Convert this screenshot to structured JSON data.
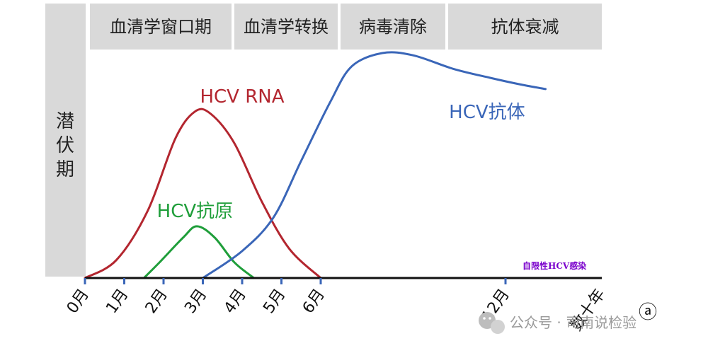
{
  "chart_data": {
    "type": "line",
    "title": "",
    "xlabel": "",
    "ylabel": "",
    "x_ticks": [
      "0月",
      "1月",
      "2月",
      "3月",
      "4月",
      "5月",
      "6月",
      "12月",
      "数十年"
    ],
    "x_domain_months": [
      0,
      13.8
    ],
    "y_range": [
      0,
      100
    ],
    "grid": false,
    "legend": "none",
    "latent_period_label": "潜伏期",
    "phases": [
      {
        "label": "血清学窗口期",
        "start": 0,
        "end": 4
      },
      {
        "label": "血清学转换",
        "start": 4,
        "end": 6.5
      },
      {
        "label": "病毒清除",
        "start": 6.5,
        "end": 9.3
      },
      {
        "label": "抗体衰减",
        "start": 9.3,
        "end": 13.3
      }
    ],
    "series": [
      {
        "name": "HCV RNA",
        "color": "#b3262f",
        "label_pos_x": 4.0,
        "label_pos_y": 78,
        "points": [
          [
            0,
            0
          ],
          [
            0.8,
            8
          ],
          [
            1.6,
            30
          ],
          [
            2.3,
            62
          ],
          [
            2.8,
            74
          ],
          [
            3.2,
            73
          ],
          [
            3.8,
            60
          ],
          [
            4.5,
            34
          ],
          [
            5.2,
            13
          ],
          [
            6,
            0
          ]
        ]
      },
      {
        "name": "HCV抗原",
        "color": "#1f9e3a",
        "label_pos_x": 2.8,
        "label_pos_y": 27,
        "points": [
          [
            1.5,
            0
          ],
          [
            1.9,
            7
          ],
          [
            2.5,
            18
          ],
          [
            2.85,
            23
          ],
          [
            3.3,
            18
          ],
          [
            3.8,
            7
          ],
          [
            4.3,
            0
          ]
        ]
      },
      {
        "name": "HCV抗体",
        "color": "#3a66b8",
        "label_pos_x": 11.4,
        "label_pos_y": 71,
        "points": [
          [
            3,
            0
          ],
          [
            4,
            12
          ],
          [
            4.8,
            27
          ],
          [
            5.5,
            52
          ],
          [
            6.3,
            78
          ],
          [
            7,
            94
          ],
          [
            8,
            100
          ],
          [
            9,
            99
          ],
          [
            10.3,
            93
          ],
          [
            11.5,
            89
          ],
          [
            12.5,
            86
          ],
          [
            13.3,
            84
          ]
        ]
      }
    ],
    "annotation": "自限性HCV感染",
    "panel_label": "ⓐ"
  },
  "watermark": "公众号 · 司南说检验"
}
